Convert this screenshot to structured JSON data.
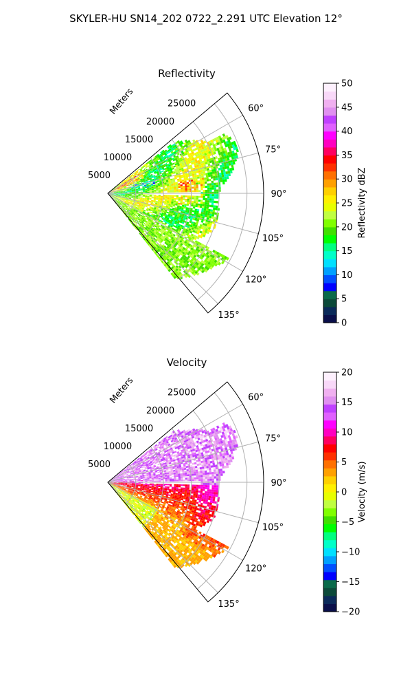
{
  "suptitle": "SKYLER-HU  SN14_202  0722_2.291 UTC Elevation 12°",
  "chart_data": [
    {
      "type": "heatmap",
      "subtype": "polar-sector",
      "title": "Reflectivity",
      "radial_label": "Meters",
      "radial_ticks": [
        "5000",
        "10000",
        "15000",
        "20000",
        "25000"
      ],
      "radial_tick_values": [
        5000,
        10000,
        15000,
        20000,
        25000
      ],
      "rlim": [
        0,
        28000
      ],
      "azimuth_ticks": [
        "60°",
        "75°",
        "90°",
        "105°",
        "120°",
        "135°"
      ],
      "azimuth_tick_values": [
        60,
        75,
        90,
        105,
        120,
        135
      ],
      "azimuth_range": [
        50,
        140
      ],
      "grid": true,
      "colorbar": {
        "label": "Reflectivity dBZ",
        "ticks": [
          "0",
          "5",
          "10",
          "15",
          "20",
          "25",
          "30",
          "35",
          "40",
          "45",
          "50"
        ],
        "range": [
          0,
          50
        ],
        "colors": [
          "#0a0f4a",
          "#0b2a5a",
          "#0c4a3a",
          "#0a6a4a",
          "#0000ff",
          "#0050ff",
          "#00a0ff",
          "#00e0ff",
          "#00ffc8",
          "#00ff80",
          "#00ff00",
          "#40e000",
          "#80ff00",
          "#c0ff40",
          "#e8ff00",
          "#fff000",
          "#ffd000",
          "#ffa000",
          "#ff7000",
          "#ff3000",
          "#ff0000",
          "#ff0060",
          "#ff00c0",
          "#ff00ff",
          "#e060ff",
          "#c040ff",
          "#e090f0",
          "#f0b0f0",
          "#f8d8f8",
          "#fdf0fd"
        ]
      },
      "field_summary": {
        "dominant_range_dbz": [
          15,
          30
        ],
        "max_dbz": 40,
        "data_extent_m": 22000
      }
    },
    {
      "type": "heatmap",
      "subtype": "polar-sector",
      "title": "Velocity",
      "radial_label": "Meters",
      "radial_ticks": [
        "5000",
        "10000",
        "15000",
        "20000",
        "25000"
      ],
      "radial_tick_values": [
        5000,
        10000,
        15000,
        20000,
        25000
      ],
      "rlim": [
        0,
        28000
      ],
      "azimuth_ticks": [
        "60°",
        "75°",
        "90°",
        "105°",
        "120°",
        "135°"
      ],
      "azimuth_tick_values": [
        60,
        75,
        90,
        105,
        120,
        135
      ],
      "azimuth_range": [
        50,
        140
      ],
      "grid": true,
      "colorbar": {
        "label": "Velocity (m/s)",
        "ticks": [
          "−20",
          "−15",
          "−10",
          "−5",
          "0",
          "5",
          "10",
          "15",
          "20"
        ],
        "range": [
          -20,
          20
        ],
        "colors": [
          "#0a0f4a",
          "#0b2a5a",
          "#0c4a3a",
          "#0a6a4a",
          "#0000ff",
          "#0050ff",
          "#00a0ff",
          "#00e0ff",
          "#00ffc8",
          "#00ff80",
          "#00ff00",
          "#40e000",
          "#80ff00",
          "#c0ff40",
          "#e8ff00",
          "#fff000",
          "#ffd000",
          "#ffa000",
          "#ff7000",
          "#ff3000",
          "#ff0000",
          "#ff0060",
          "#ff00c0",
          "#ff00ff",
          "#e060ff",
          "#c040ff",
          "#e090f0",
          "#f0b0f0",
          "#f8d8f8",
          "#fdf0fd"
        ]
      },
      "field_summary": {
        "north_of_90deg_ms": [
          10,
          18
        ],
        "south_of_90deg_ms": [
          0,
          12
        ],
        "data_extent_m": 22000
      }
    }
  ]
}
